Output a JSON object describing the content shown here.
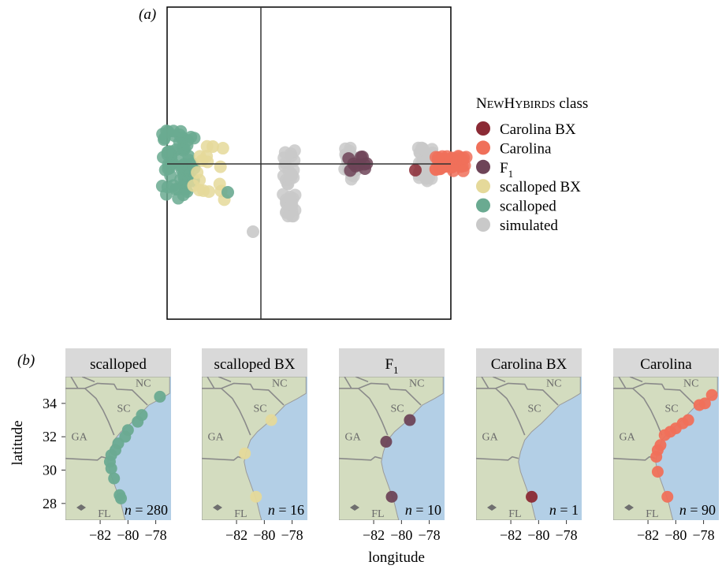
{
  "colors": {
    "carolina_bx": "#8b2a35",
    "carolina": "#f0705a",
    "f1": "#6e4458",
    "scalloped_bx": "#e5d99a",
    "scalloped": "#6aaa91",
    "simulated": "#c9c9c9",
    "land": "#d3dcbf",
    "sea": "#b3cfe6",
    "strip": "#d9d9d9",
    "border": "#8a8a8a"
  },
  "panel_a": {
    "label": "(a)",
    "legend": {
      "title_first": "N",
      "title_first_small": "EW",
      "title_second": "H",
      "title_second_small": "YBIRDS",
      "title_rest": " class",
      "items": [
        {
          "key": "carolina_bx",
          "label": "Carolina BX"
        },
        {
          "key": "carolina",
          "label": "Carolina"
        },
        {
          "key": "f1",
          "label": "F",
          "sub": "1"
        },
        {
          "key": "scalloped_bx",
          "label": "scalloped BX"
        },
        {
          "key": "scalloped",
          "label": "scalloped"
        },
        {
          "key": "simulated",
          "label": "simulated"
        }
      ]
    }
  },
  "panel_b": {
    "label": "(b)",
    "ylabel": "latitude",
    "xlabel": "longitude",
    "y_ticks": [
      "34",
      "32",
      "30",
      "28"
    ],
    "x_ticks": [
      "−82",
      "−80",
      "−78"
    ],
    "map_labels": {
      "nc": "NC",
      "sc": "SC",
      "ga": "GA",
      "fl": "FL"
    },
    "facets": [
      {
        "key": "scalloped",
        "title": "scalloped",
        "n_text": "n = 280"
      },
      {
        "key": "scalloped_bx",
        "title": "scalloped BX",
        "n_text": "n = 16"
      },
      {
        "key": "f1",
        "title": "F",
        "title_sub": "1",
        "n_text": "n = 10"
      },
      {
        "key": "carolina_bx",
        "title": "Carolina BX",
        "n_text": "n = 1"
      },
      {
        "key": "carolina",
        "title": "Carolina",
        "n_text": "n = 90"
      }
    ]
  },
  "chart_data": [
    {
      "type": "scatter",
      "panel": "a",
      "title": "",
      "xlabel": "",
      "ylabel": "",
      "xlim": [
        -1,
        1
      ],
      "ylim": [
        -1,
        1
      ],
      "grid": false,
      "reference_lines": {
        "x": 0,
        "y": 0
      },
      "legend_placement": "right",
      "series": [
        {
          "name": "scalloped",
          "cluster_x": -0.92,
          "cluster_y": 0.0,
          "n": 280
        },
        {
          "name": "scalloped BX",
          "cluster_x": -0.7,
          "cluster_y": -0.05,
          "n": 16
        },
        {
          "name": "simulated",
          "cluster_x": -0.14,
          "cluster_y": -0.12,
          "n": 40
        },
        {
          "name": "F1",
          "cluster_x": 0.34,
          "cluster_y": 0.0,
          "n": 10
        },
        {
          "name": "simulated",
          "cluster_x": 0.3,
          "cluster_y": 0.0,
          "n": 20
        },
        {
          "name": "Carolina BX",
          "cluster_x": 0.75,
          "cluster_y": -0.04,
          "n": 1
        },
        {
          "name": "simulated",
          "cluster_x": 0.82,
          "cluster_y": 0.0,
          "n": 40
        },
        {
          "name": "Carolina",
          "cluster_x": 1.0,
          "cluster_y": 0.0,
          "n": 90
        }
      ]
    },
    {
      "type": "scatter",
      "panel": "b",
      "xlabel": "longitude",
      "ylabel": "latitude",
      "xlim": [
        -84.5,
        -76.9
      ],
      "ylim": [
        27.0,
        35.6
      ],
      "facets": [
        {
          "name": "scalloped",
          "n": 280,
          "points": [
            [
              -77.7,
              34.4
            ],
            [
              -79.0,
              33.3
            ],
            [
              -79.3,
              32.9
            ],
            [
              -80.0,
              32.4
            ],
            [
              -80.2,
              32.0
            ],
            [
              -80.7,
              31.6
            ],
            [
              -80.9,
              31.2
            ],
            [
              -81.2,
              30.9
            ],
            [
              -81.3,
              30.5
            ],
            [
              -81.2,
              30.1
            ],
            [
              -81.0,
              29.5
            ],
            [
              -80.6,
              28.5
            ],
            [
              -80.5,
              28.3
            ]
          ]
        },
        {
          "name": "scalloped BX",
          "n": 16,
          "points": [
            [
              -79.5,
              33.0
            ],
            [
              -81.4,
              31.0
            ],
            [
              -80.6,
              28.4
            ]
          ]
        },
        {
          "name": "F1",
          "n": 10,
          "points": [
            [
              -79.4,
              33.0
            ],
            [
              -81.1,
              31.7
            ],
            [
              -80.7,
              28.4
            ]
          ]
        },
        {
          "name": "Carolina BX",
          "n": 1,
          "points": [
            [
              -80.5,
              28.4
            ]
          ]
        },
        {
          "name": "Carolina",
          "n": 90,
          "points": [
            [
              -77.4,
              34.5
            ],
            [
              -77.9,
              34.0
            ],
            [
              -78.3,
              33.9
            ],
            [
              -79.1,
              33.0
            ],
            [
              -79.5,
              32.8
            ],
            [
              -80.0,
              32.5
            ],
            [
              -80.4,
              32.3
            ],
            [
              -80.8,
              32.1
            ],
            [
              -81.1,
              31.5
            ],
            [
              -81.3,
              31.2
            ],
            [
              -81.4,
              30.8
            ],
            [
              -81.3,
              29.9
            ],
            [
              -80.6,
              28.4
            ]
          ]
        }
      ]
    }
  ]
}
